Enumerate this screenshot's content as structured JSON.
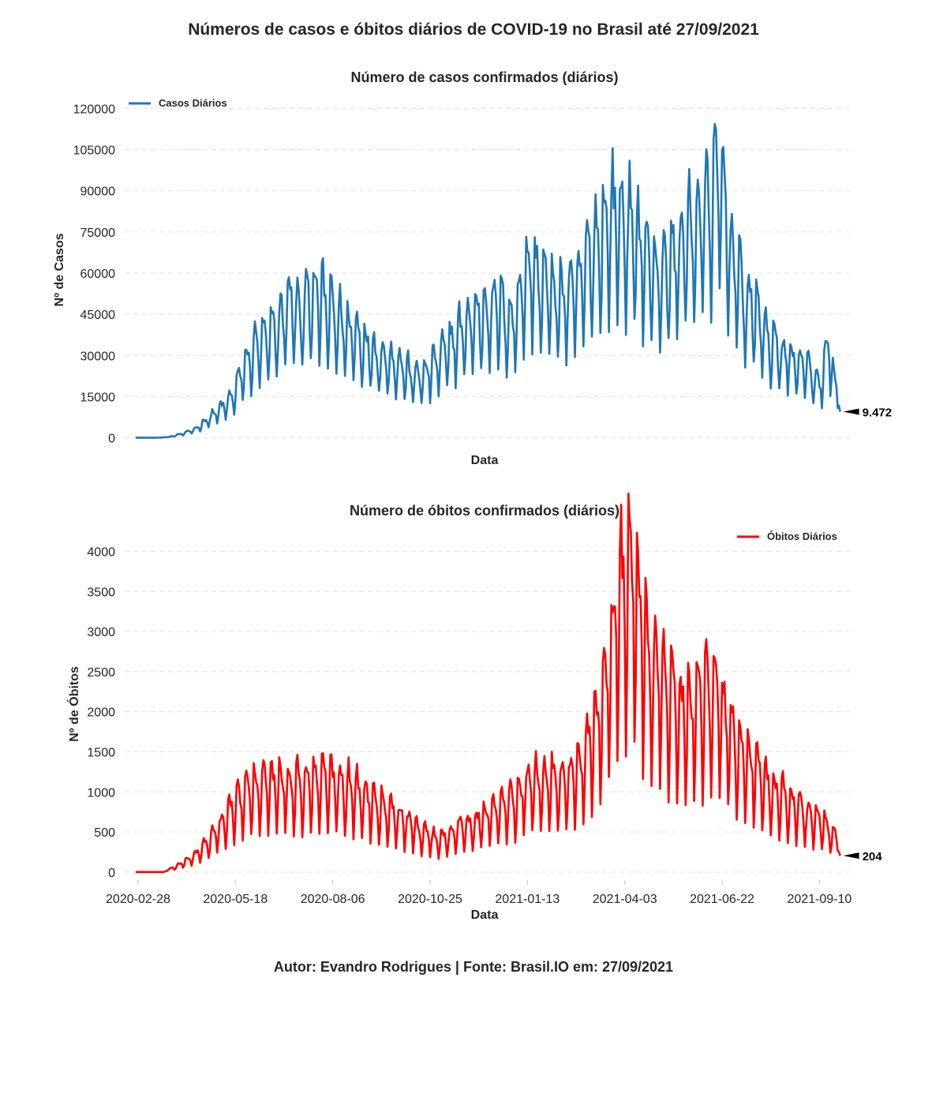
{
  "figure": {
    "title": "Números de casos e óbitos diários de COVID-19 no Brasil até 27/09/2021",
    "footer": "Autor: Evandro Rodrigues | Fonte: Brasil.IO em: 27/09/2021"
  },
  "chart_data": [
    {
      "type": "line",
      "title": "Número de casos confirmados (diários)",
      "xlabel": "Data",
      "ylabel": "Nº de Casos",
      "legend": "top-left",
      "grid": "y-dashed",
      "color": "#1f77b4",
      "ylim": [
        -3000,
        125000
      ],
      "yticks": [
        0,
        15000,
        30000,
        45000,
        60000,
        75000,
        90000,
        105000,
        120000
      ],
      "xlim": [
        "2020-02-17",
        "2021-10-07"
      ],
      "xticks_visible": false,
      "series": [
        {
          "name": "Casos Diários",
          "x": [
            "2020-02-26",
            "2020-03-15",
            "2020-03-25",
            "2020-04-05",
            "2020-04-15",
            "2020-04-25",
            "2020-05-05",
            "2020-05-15",
            "2020-05-25",
            "2020-06-05",
            "2020-06-15",
            "2020-06-25",
            "2020-07-01",
            "2020-07-10",
            "2020-07-20",
            "2020-07-30",
            "2020-08-10",
            "2020-08-20",
            "2020-08-30",
            "2020-09-10",
            "2020-09-20",
            "2020-09-30",
            "2020-10-10",
            "2020-10-20",
            "2020-11-01",
            "2020-11-10",
            "2020-11-20",
            "2020-12-01",
            "2020-12-10",
            "2020-12-20",
            "2021-01-01",
            "2021-01-07",
            "2021-01-15",
            "2021-01-25",
            "2021-02-05",
            "2021-02-15",
            "2021-02-25",
            "2021-03-05",
            "2021-03-15",
            "2021-03-25",
            "2021-04-05",
            "2021-04-15",
            "2021-04-25",
            "2021-05-05",
            "2021-05-15",
            "2021-05-25",
            "2021-06-05",
            "2021-06-15",
            "2021-06-20",
            "2021-06-30",
            "2021-07-10",
            "2021-07-20",
            "2021-07-30",
            "2021-08-10",
            "2021-08-20",
            "2021-08-30",
            "2021-09-05",
            "2021-09-10",
            "2021-09-18",
            "2021-09-22",
            "2021-09-25",
            "2021-09-27"
          ],
          "y": [
            0,
            0,
            300,
            1500,
            3000,
            6500,
            10000,
            14000,
            25000,
            33000,
            36000,
            42000,
            50000,
            43000,
            52000,
            48000,
            42000,
            38000,
            35000,
            30000,
            28000,
            26000,
            22000,
            22000,
            28000,
            33000,
            38000,
            43000,
            45000,
            47000,
            40000,
            52000,
            60000,
            55000,
            50000,
            50000,
            55000,
            65000,
            72000,
            80000,
            75000,
            70000,
            60000,
            58000,
            65000,
            72000,
            78000,
            85000,
            95000,
            65000,
            50000,
            45000,
            35000,
            30000,
            28000,
            25000,
            22000,
            18000,
            32000,
            20000,
            14000,
            9472
          ]
        }
      ],
      "annotation": "9.472"
    },
    {
      "type": "line",
      "title": "Número de óbitos confirmados (diários)",
      "xlabel": "Data",
      "ylabel": "Nº de Óbitos",
      "legend": "top-right",
      "grid": "y-dashed",
      "color": "#ff0000",
      "ylim": [
        -100,
        4300
      ],
      "yticks": [
        0,
        500,
        1000,
        1500,
        2000,
        2500,
        3000,
        3500,
        4000
      ],
      "xlim": [
        "2020-02-17",
        "2021-10-07"
      ],
      "xticks": [
        "2020-02-28",
        "2020-05-18",
        "2020-08-06",
        "2020-10-25",
        "2021-01-13",
        "2021-04-03",
        "2021-06-22",
        "2021-09-10"
      ],
      "series": [
        {
          "name": "Óbitos Diários",
          "x": [
            "2020-02-26",
            "2020-03-20",
            "2020-04-01",
            "2020-04-15",
            "2020-05-01",
            "2020-05-15",
            "2020-06-01",
            "2020-06-15",
            "2020-07-01",
            "2020-07-15",
            "2020-08-01",
            "2020-08-15",
            "2020-09-01",
            "2020-09-15",
            "2020-10-01",
            "2020-10-15",
            "2020-11-01",
            "2020-11-15",
            "2020-12-01",
            "2020-12-15",
            "2021-01-01",
            "2021-01-15",
            "2021-02-01",
            "2021-02-15",
            "2021-03-01",
            "2021-03-15",
            "2021-03-25",
            "2021-04-01",
            "2021-04-08",
            "2021-04-15",
            "2021-04-25",
            "2021-05-05",
            "2021-05-15",
            "2021-05-25",
            "2021-06-05",
            "2021-06-15",
            "2021-06-25",
            "2021-07-05",
            "2021-07-15",
            "2021-07-25",
            "2021-08-05",
            "2021-08-15",
            "2021-08-25",
            "2021-09-05",
            "2021-09-15",
            "2021-09-22",
            "2021-09-27"
          ],
          "y": [
            0,
            0,
            80,
            200,
            450,
            750,
            1000,
            1050,
            1050,
            1050,
            1100,
            1050,
            900,
            800,
            650,
            500,
            380,
            500,
            600,
            700,
            850,
            1050,
            1100,
            1100,
            1300,
            2000,
            2800,
            3300,
            3600,
            3000,
            2500,
            2200,
            2000,
            1900,
            2000,
            2100,
            1800,
            1500,
            1300,
            1100,
            950,
            850,
            750,
            650,
            550,
            450,
            204
          ]
        }
      ],
      "annotation": "204"
    }
  ]
}
